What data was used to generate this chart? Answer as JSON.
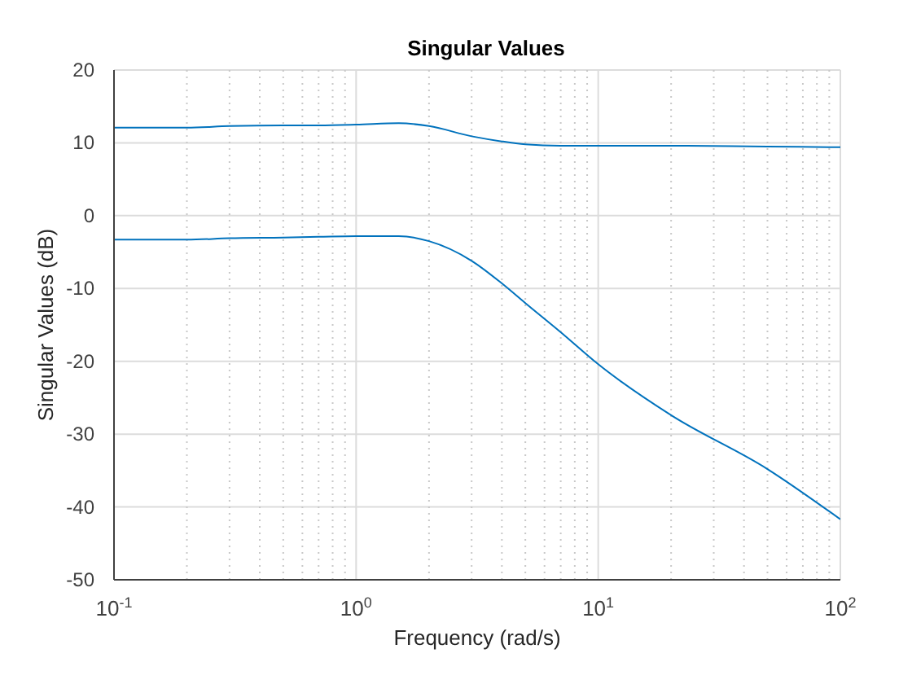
{
  "chart_data": {
    "type": "line",
    "title": "Singular Values",
    "xlabel": "Frequency (rad/s)",
    "ylabel": "Singular Values (dB)",
    "x": [
      0.1,
      0.2,
      0.3,
      0.5,
      0.7,
      1,
      1.5,
      2,
      3,
      4,
      5,
      7,
      10,
      20,
      50,
      100
    ],
    "series": [
      {
        "color": "#0072bd",
        "values": [
          12.1,
          12.1,
          12.3,
          12.4,
          12.4,
          12.5,
          12.7,
          12.3,
          10.9,
          10.2,
          9.8,
          9.6,
          9.6,
          9.6,
          9.5,
          9.4
        ]
      },
      {
        "color": "#0072bd",
        "values": [
          -3.3,
          -3.3,
          -3.1,
          -3.0,
          -2.9,
          -2.8,
          -2.8,
          -3.5,
          -6.2,
          -9.3,
          -12,
          -16,
          -20.4,
          -27.4,
          -34.8,
          -41.7
        ]
      }
    ],
    "log": "x",
    "xlim": [
      0.1,
      100
    ],
    "xticks": [
      {
        "value": 0.1,
        "label": "10$^{-1}$"
      },
      {
        "value": 0.2,
        "label": null
      },
      {
        "value": 0.3,
        "label": null
      },
      {
        "value": 0.4,
        "label": null
      },
      {
        "value": 0.5,
        "label": null
      },
      {
        "value": 0.6,
        "label": null
      },
      {
        "value": 0.7,
        "label": null
      },
      {
        "value": 0.8,
        "label": null
      },
      {
        "value": 0.9,
        "label": null
      },
      {
        "value": 1,
        "label": "10$^{0}$"
      },
      {
        "value": 2,
        "label": null
      },
      {
        "value": 3,
        "label": null
      },
      {
        "value": 4,
        "label": null
      },
      {
        "value": 5,
        "label": null
      },
      {
        "value": 6,
        "label": null
      },
      {
        "value": 7,
        "label": null
      },
      {
        "value": 8,
        "label": null
      },
      {
        "value": 9,
        "label": null
      },
      {
        "value": 10,
        "label": "10$^{1}$"
      },
      {
        "value": 20,
        "label": null
      },
      {
        "value": 30,
        "label": null
      },
      {
        "value": 40,
        "label": null
      },
      {
        "value": 50,
        "label": null
      },
      {
        "value": 60,
        "label": null
      },
      {
        "value": 70,
        "label": null
      },
      {
        "value": 80,
        "label": null
      },
      {
        "value": 90,
        "label": null
      },
      {
        "value": 100,
        "label": "10$^{2}$"
      }
    ],
    "ylim": [
      -50,
      20
    ],
    "yticks": [
      -50,
      -40,
      -30,
      -20,
      -10,
      0,
      10,
      20
    ],
    "grid": true,
    "legend": false,
    "marker": "none",
    "line_style": "solid"
  }
}
